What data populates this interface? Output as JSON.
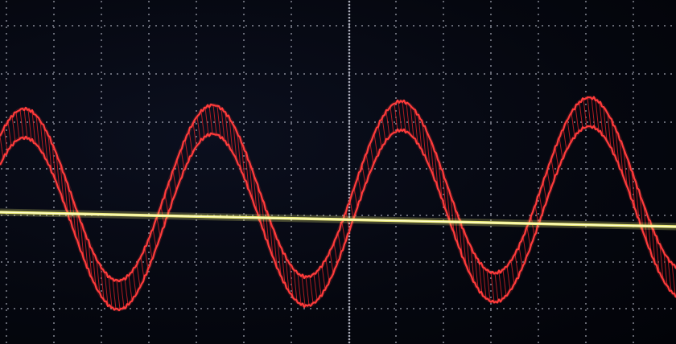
{
  "screen": {
    "description_colors": {
      "background": "#05070f",
      "grid_dots": "#c8cad8",
      "channel1_trace": "#f0ef7a",
      "channel2_trace": "#ff3b3b",
      "channel2_fill": "#c01f24"
    },
    "grid": {
      "divisions_x": 14,
      "divisions_y": 7,
      "subdivisions": 5
    },
    "traces": [
      {
        "channel": "CH1",
        "shape": "flat-line",
        "color": "#f0ef7a"
      },
      {
        "channel": "CH2",
        "shape": "sine-band",
        "color": "#ff3b3b",
        "cycles_visible": 3.6
      }
    ]
  }
}
